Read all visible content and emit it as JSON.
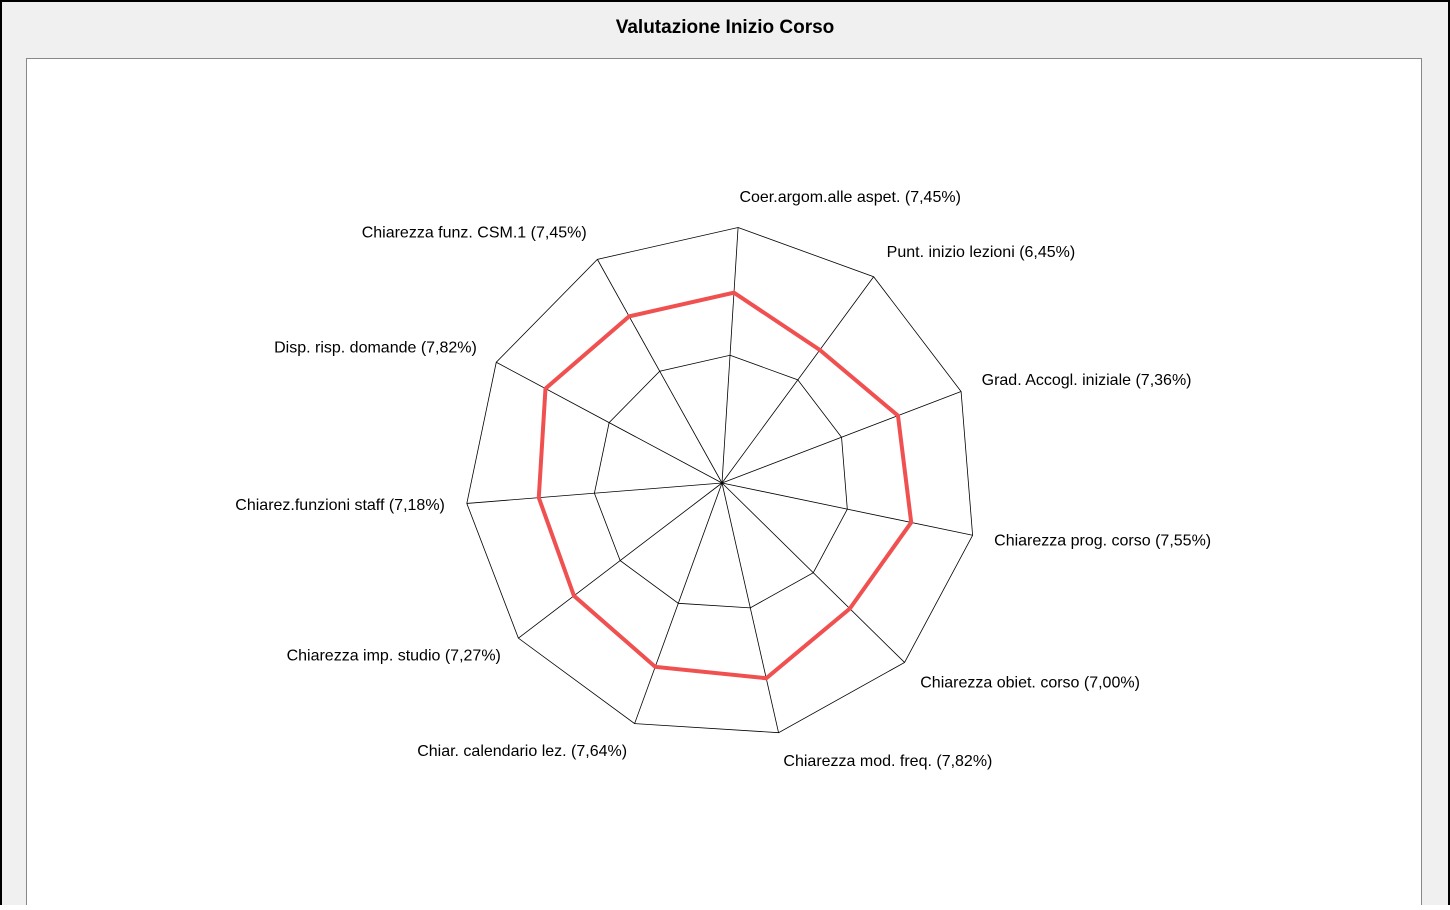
{
  "chart_data": {
    "type": "radar",
    "title": "Valutazione Inizio Corso",
    "categories": [
      "Coer.argom.alle aspet. (7,45%)",
      "Punt. inizio lezioni (6,45%)",
      "Grad. Accogl. iniziale (7,36%)",
      "Chiarezza prog. corso (7,55%)",
      "Chiarezza obiet. corso (7,00%)",
      "Chiarezza mod. freq. (7,82%)",
      "Chiar. calendario lez. (7,64%)",
      "Chiarezza imp. studio (7,27%)",
      "Chiarez.funzioni staff (7,18%)",
      "Disp. risp. domande (7,82%)",
      "Chiarezza funz. CSM.1 (7,45%)"
    ],
    "series": [
      {
        "color": "#f05050",
        "values": [
          7.45,
          6.45,
          7.36,
          7.55,
          7.0,
          7.82,
          7.64,
          7.27,
          7.18,
          7.82,
          7.45
        ]
      }
    ],
    "ylim": [
      0,
      10
    ],
    "yticks": [
      5,
      10
    ],
    "grid": true
  }
}
